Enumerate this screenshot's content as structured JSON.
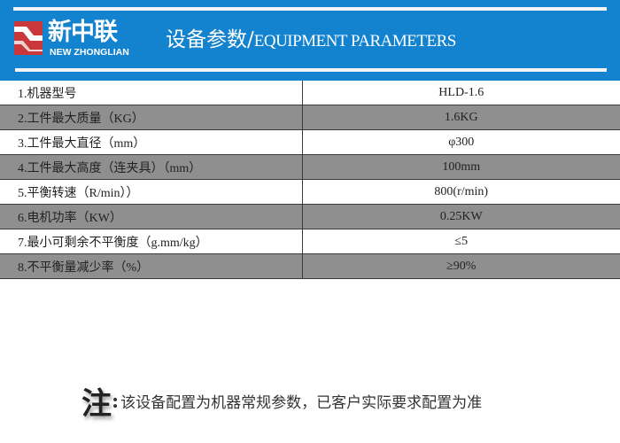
{
  "header": {
    "logo_cn": "新中联",
    "logo_en": "NEW ZHONGLIAN",
    "title_cn": "设备参数/",
    "title_en": "EQUIPMENT PARAMETERS",
    "bg_color": "#1483cf"
  },
  "params": [
    {
      "label": "1.机器型号",
      "value": "HLD-1.6"
    },
    {
      "label": "2.工件最大质量（KG）",
      "value": "1.6KG"
    },
    {
      "label": "3.工件最大直径（mm）",
      "value": "φ300"
    },
    {
      "label": "4.工件最大高度（连夹具）（mm）",
      "value": "100mm"
    },
    {
      "label": "5.平衡转速（R/min））",
      "value": "800(r/min)"
    },
    {
      "label": "6.电机功率（KW）",
      "value": "0.25KW"
    },
    {
      "label": "7.最小可剩余不平衡度（g.mm/kg）",
      "value": "≤5"
    },
    {
      "label": "8.不平衡量减少率（%）",
      "value": "≥90%"
    }
  ],
  "note": {
    "mark": "注",
    "colon": ":",
    "text": "该设备配置为机器常规参数，已客户实际要求配置为准"
  }
}
